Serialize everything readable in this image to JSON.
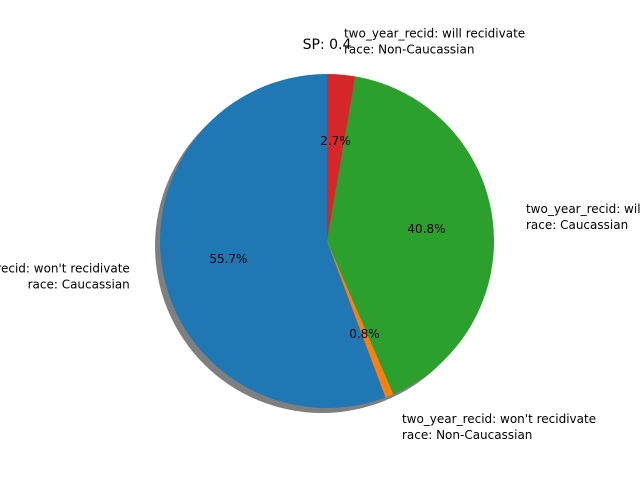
{
  "chart_data": {
    "type": "pie",
    "title": "SP: 0.4",
    "start_angle_deg": 90,
    "direction": "counterclockwise",
    "shadow": true,
    "slices": [
      {
        "label_lines": [
          "two_year_recid: won't recidivate",
          "race: Caucassian"
        ],
        "value": 55.7,
        "pct_label": "55.7%",
        "color": "#1f77b4"
      },
      {
        "label_lines": [
          "two_year_recid: won't recidivate",
          "race: Non-Caucassian"
        ],
        "value": 0.8,
        "pct_label": "0.8%",
        "color": "#ff7f0e"
      },
      {
        "label_lines": [
          "two_year_recid: will recidivate",
          "race: Caucassian"
        ],
        "value": 40.8,
        "pct_label": "40.8%",
        "color": "#2ca02c"
      },
      {
        "label_lines": [
          "two_year_recid: will recidivate",
          "race: Non-Caucassian"
        ],
        "value": 2.7,
        "pct_label": "2.7%",
        "color": "#d62728"
      }
    ]
  }
}
